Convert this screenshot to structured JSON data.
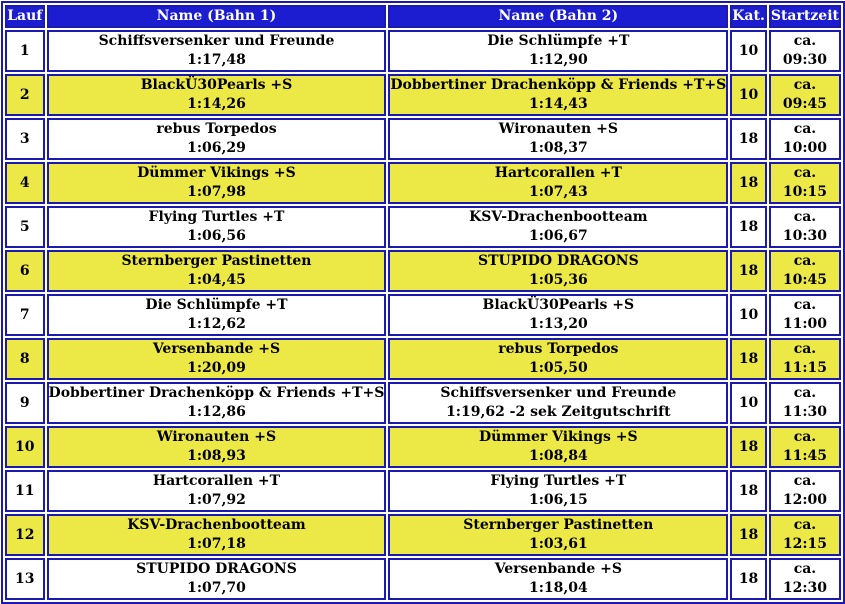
{
  "headers": {
    "lauf": "Lauf",
    "bahn1": "Name (Bahn 1)",
    "bahn2": "Name (Bahn 2)",
    "kat": "Kat.",
    "startzeit": "Startzeit"
  },
  "rows": [
    {
      "lauf": "1",
      "bahn1_name": "Schiffsversenker und Freunde",
      "bahn1_time": "1:17,48",
      "bahn2_name": "Die Schlümpfe +T",
      "bahn2_time": "1:12,90",
      "kat": "10",
      "start_prefix": "ca.",
      "start_time": "09:30"
    },
    {
      "lauf": "2",
      "bahn1_name": "BlackÜ30Pearls +S",
      "bahn1_time": "1:14,26",
      "bahn2_name": "Dobbertiner Drachenköpp & Friends +T+S",
      "bahn2_time": "1:14,43",
      "kat": "10",
      "start_prefix": "ca.",
      "start_time": "09:45"
    },
    {
      "lauf": "3",
      "bahn1_name": "rebus Torpedos",
      "bahn1_time": "1:06,29",
      "bahn2_name": "Wironauten +S",
      "bahn2_time": "1:08,37",
      "kat": "18",
      "start_prefix": "ca.",
      "start_time": "10:00"
    },
    {
      "lauf": "4",
      "bahn1_name": "Dümmer Vikings +S",
      "bahn1_time": "1:07,98",
      "bahn2_name": "Hartcorallen +T",
      "bahn2_time": "1:07,43",
      "kat": "18",
      "start_prefix": "ca.",
      "start_time": "10:15"
    },
    {
      "lauf": "5",
      "bahn1_name": "Flying Turtles +T",
      "bahn1_time": "1:06,56",
      "bahn2_name": "KSV-Drachenbootteam",
      "bahn2_time": "1:06,67",
      "kat": "18",
      "start_prefix": "ca.",
      "start_time": "10:30"
    },
    {
      "lauf": "6",
      "bahn1_name": "Sternberger Pastinetten",
      "bahn1_time": "1:04,45",
      "bahn2_name": "STUPIDO DRAGONS",
      "bahn2_time": "1:05,36",
      "kat": "18",
      "start_prefix": "ca.",
      "start_time": "10:45"
    },
    {
      "lauf": "7",
      "bahn1_name": "Die Schlümpfe +T",
      "bahn1_time": "1:12,62",
      "bahn2_name": "BlackÜ30Pearls +S",
      "bahn2_time": "1:13,20",
      "kat": "10",
      "start_prefix": "ca.",
      "start_time": "11:00"
    },
    {
      "lauf": "8",
      "bahn1_name": "Versenbande +S",
      "bahn1_time": "1:20,09",
      "bahn2_name": "rebus Torpedos",
      "bahn2_time": "1:05,50",
      "kat": "18",
      "start_prefix": "ca.",
      "start_time": "11:15"
    },
    {
      "lauf": "9",
      "bahn1_name": "Dobbertiner Drachenköpp & Friends +T+S",
      "bahn1_time": "1:12,86",
      "bahn2_name": "Schiffsversenker und Freunde",
      "bahn2_time": "1:19,62 -2 sek Zeitgutschrift",
      "kat": "10",
      "start_prefix": "ca.",
      "start_time": "11:30"
    },
    {
      "lauf": "10",
      "bahn1_name": "Wironauten +S",
      "bahn1_time": "1:08,93",
      "bahn2_name": "Dümmer Vikings +S",
      "bahn2_time": "1:08,84",
      "kat": "18",
      "start_prefix": "ca.",
      "start_time": "11:45"
    },
    {
      "lauf": "11",
      "bahn1_name": "Hartcorallen +T",
      "bahn1_time": "1:07,92",
      "bahn2_name": "Flying Turtles +T",
      "bahn2_time": "1:06,15",
      "kat": "18",
      "start_prefix": "ca.",
      "start_time": "12:00"
    },
    {
      "lauf": "12",
      "bahn1_name": "KSV-Drachenbootteam",
      "bahn1_time": "1:07,18",
      "bahn2_name": "Sternberger Pastinetten",
      "bahn2_time": "1:03,61",
      "kat": "18",
      "start_prefix": "ca.",
      "start_time": "12:15"
    },
    {
      "lauf": "13",
      "bahn1_name": "STUPIDO DRAGONS",
      "bahn1_time": "1:07,70",
      "bahn2_name": "Versenbande +S",
      "bahn2_time": "1:18,04",
      "kat": "18",
      "start_prefix": "ca.",
      "start_time": "12:30"
    }
  ],
  "colors": {
    "header_bg": "#1c1cd0",
    "border": "#1a1ab0",
    "row_highlight": "#ece845",
    "row_plain": "#ffffff"
  }
}
